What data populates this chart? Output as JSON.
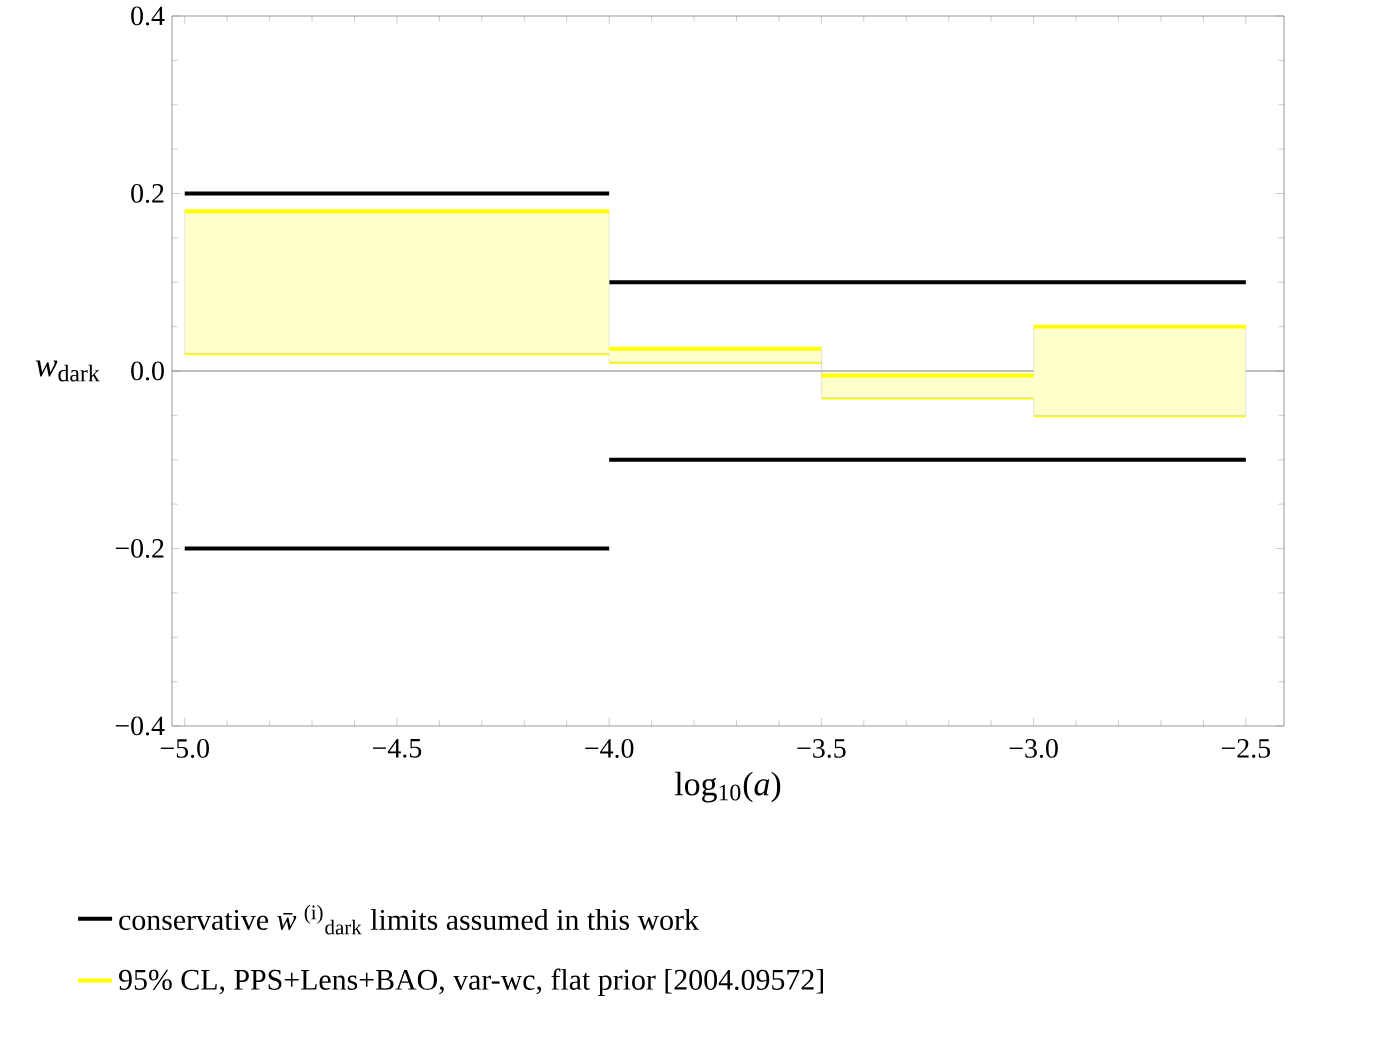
{
  "chart_data": {
    "type": "step",
    "xlabel": "log$_{10}$(*a*)",
    "ylabel": "*w*$_{dark}$",
    "xlim": [
      -5.03,
      -2.41
    ],
    "ylim": [
      -0.4,
      0.4
    ],
    "xticks": [
      {
        "value": -5.0,
        "label": "−5.0"
      },
      {
        "value": -4.5,
        "label": "−4.5"
      },
      {
        "value": -4.0,
        "label": "−4.0"
      },
      {
        "value": -3.5,
        "label": "−3.5"
      },
      {
        "value": -3.0,
        "label": "−3.0"
      },
      {
        "value": -2.5,
        "label": "−2.5"
      }
    ],
    "yticks": [
      {
        "value": -0.4,
        "label": "−0.4"
      },
      {
        "value": -0.2,
        "label": "−0.2"
      },
      {
        "value": 0.0,
        "label": "0.0"
      },
      {
        "value": 0.2,
        "label": "0.2"
      },
      {
        "value": 0.4,
        "label": "0.4"
      }
    ],
    "legend": "bottom",
    "ref_lines": [
      {
        "axis": "y",
        "value": 0,
        "color": "#808080"
      }
    ],
    "series": [
      {
        "name": "conservative *w̄*$^{(i)}$$_{dark}$ limits assumed in this work",
        "color": "#000000",
        "x": [
          -5.0,
          -4.0,
          -2.5
        ],
        "values": [
          0.2,
          0.1,
          0.1
        ]
      },
      {
        "color": "#000000",
        "x": [
          -5.0,
          -4.0,
          -2.5
        ],
        "values": [
          -0.2,
          -0.1,
          -0.1
        ]
      },
      {
        "color": "#ffff00",
        "x": [
          -5.0,
          -4.0,
          -3.5,
          -3.0,
          -2.5
        ],
        "values": [
          0.02,
          0.01,
          -0.03,
          -0.05,
          -0.05
        ]
      },
      {
        "name": "95% CL, PPS+Lens+BAO, var-wc, flat prior [2004.09572]",
        "color": "#ffff00",
        "x": [
          -5.0,
          -4.0,
          -3.5,
          -3.0,
          -2.5
        ],
        "values": [
          0.18,
          0.025,
          -0.005,
          0.05,
          0.05
        ],
        "lower": [
          0.02,
          0.01,
          -0.03,
          -0.05,
          -0.05
        ],
        "upper": [
          0.18,
          0.025,
          -0.005,
          0.05,
          0.05
        ]
      }
    ]
  }
}
